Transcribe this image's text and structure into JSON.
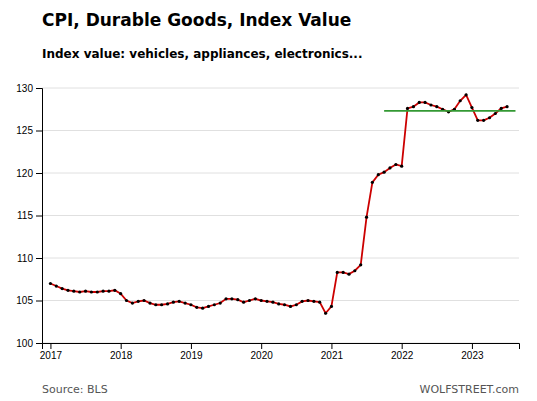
{
  "chart_data": {
    "type": "line",
    "title": "CPI, Durable Goods,  Index Value",
    "subtitle": "Index value: vehicles, appliances, electronics...",
    "annotations": [
      "Source: BLS",
      "WOLFSTREET.com"
    ],
    "color": "#cc0000",
    "marker": "circle",
    "grid": "y",
    "xlim": [
      2016.88,
      2023.67
    ],
    "xticks": [
      2017,
      2018,
      2019,
      2020,
      2021,
      2022,
      2023
    ],
    "ylim": [
      100,
      130
    ],
    "yticks": [
      100,
      105,
      110,
      115,
      120,
      125,
      130
    ],
    "reference_lines": [
      {
        "value": 127.3,
        "x": [
          2021.75,
          2023.62
        ],
        "color": "#339933"
      }
    ],
    "x": [
      2017.0,
      2017.083,
      2017.167,
      2017.25,
      2017.333,
      2017.417,
      2017.5,
      2017.583,
      2017.667,
      2017.75,
      2017.833,
      2017.917,
      2018.0,
      2018.083,
      2018.167,
      2018.25,
      2018.333,
      2018.417,
      2018.5,
      2018.583,
      2018.667,
      2018.75,
      2018.833,
      2018.917,
      2019.0,
      2019.083,
      2019.167,
      2019.25,
      2019.333,
      2019.417,
      2019.5,
      2019.583,
      2019.667,
      2019.75,
      2019.833,
      2019.917,
      2020.0,
      2020.083,
      2020.167,
      2020.25,
      2020.333,
      2020.417,
      2020.5,
      2020.583,
      2020.667,
      2020.75,
      2020.833,
      2020.917,
      2021.0,
      2021.083,
      2021.167,
      2021.25,
      2021.333,
      2021.417,
      2021.5,
      2021.583,
      2021.667,
      2021.75,
      2021.833,
      2021.917,
      2022.0,
      2022.083,
      2022.167,
      2022.25,
      2022.333,
      2022.417,
      2022.5,
      2022.583,
      2022.667,
      2022.75,
      2022.833,
      2022.917,
      2023.0,
      2023.083,
      2023.167,
      2023.25,
      2023.333,
      2023.417,
      2023.5
    ],
    "values": [
      107.0,
      106.7,
      106.4,
      106.2,
      106.1,
      106.0,
      106.1,
      106.0,
      106.0,
      106.1,
      106.1,
      106.2,
      105.8,
      105.0,
      104.7,
      104.9,
      105.0,
      104.7,
      104.5,
      104.5,
      104.6,
      104.8,
      104.9,
      104.7,
      104.5,
      104.2,
      104.1,
      104.3,
      104.5,
      104.7,
      105.2,
      105.2,
      105.1,
      104.8,
      105.0,
      105.2,
      105.0,
      104.9,
      104.8,
      104.6,
      104.5,
      104.3,
      104.5,
      104.9,
      105.0,
      104.9,
      104.8,
      103.5,
      104.3,
      108.3,
      108.3,
      108.1,
      108.5,
      109.2,
      114.8,
      118.9,
      119.8,
      120.1,
      120.6,
      121.0,
      120.8,
      127.6,
      127.8,
      128.3,
      128.3,
      128.0,
      127.8,
      127.5,
      127.2,
      127.5,
      128.5,
      129.2,
      127.7,
      126.2,
      126.2,
      126.5,
      127.0,
      127.6,
      127.8
    ]
  }
}
